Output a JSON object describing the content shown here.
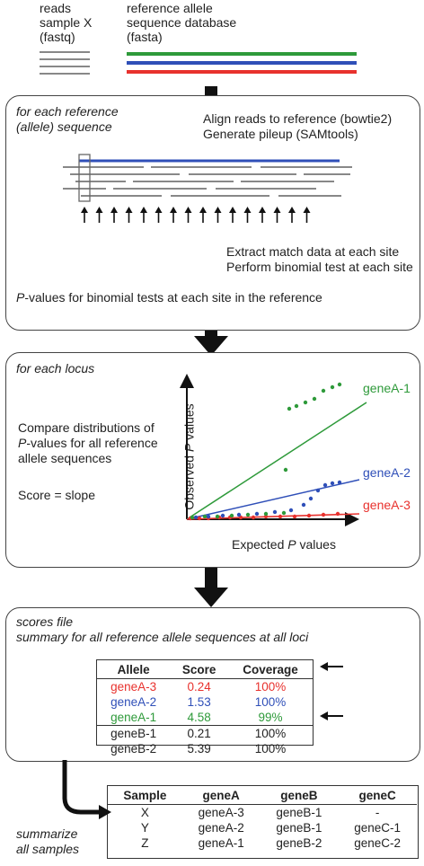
{
  "inputs": {
    "reads_lines": [
      "reads",
      "sample X",
      "(fastq)"
    ],
    "reference_lines": [
      "reference allele",
      "sequence database",
      "(fasta)"
    ]
  },
  "panel1": {
    "title_lines": [
      "for each reference",
      "(allele) sequence"
    ],
    "step1_lines": [
      "Align reads to reference (bowtie2)",
      "Generate pileup (SAMtools)"
    ],
    "step2_lines": [
      "Extract match data at each site",
      "Perform binomial test at each site"
    ],
    "result_italic": "P",
    "result_text": "-values for binomial tests at each site in the reference"
  },
  "panel2": {
    "title": "for each locus",
    "desc_lines": [
      "Compare distributions of",
      "-values for all reference",
      "allele sequences"
    ],
    "desc_italic": "P",
    "score_text": "Score = slope",
    "y_label_text": "Observed ",
    "y_label_italic": "P",
    "y_label_suffix": " values",
    "x_label_text": "Expected ",
    "x_label_italic": "P",
    "x_label_suffix": " values",
    "series_labels": [
      "geneA-1",
      "geneA-2",
      "geneA-3"
    ]
  },
  "panel3": {
    "title_lines": [
      "scores file",
      "summary for all reference allele sequences at all loci"
    ],
    "table_headers": [
      "Allele",
      "Score",
      "Coverage"
    ],
    "table_rows": [
      [
        "geneA-3",
        "0.24",
        "100%"
      ],
      [
        "geneA-2",
        "1.53",
        "100%"
      ],
      [
        "geneA-1",
        "4.58",
        "99%"
      ],
      [
        "geneB-1",
        "0.21",
        "100%"
      ],
      [
        "geneB-2",
        "5.39",
        "100%"
      ]
    ]
  },
  "summary": {
    "label_lines": [
      "summarize",
      "all samples"
    ],
    "table_headers": [
      "Sample",
      "geneA",
      "geneB",
      "geneC"
    ],
    "table_rows": [
      [
        "X",
        "geneA-3",
        "geneB-1",
        "-"
      ],
      [
        "Y",
        "geneA-2",
        "geneB-1",
        "geneC-1"
      ],
      [
        "Z",
        "geneA-1",
        "geneB-2",
        "geneC-2"
      ]
    ]
  },
  "colors": {
    "red": "#e8312d",
    "blue": "#2f4fb8",
    "green": "#2e9a3a",
    "grey": "#888888",
    "black": "#111111"
  }
}
